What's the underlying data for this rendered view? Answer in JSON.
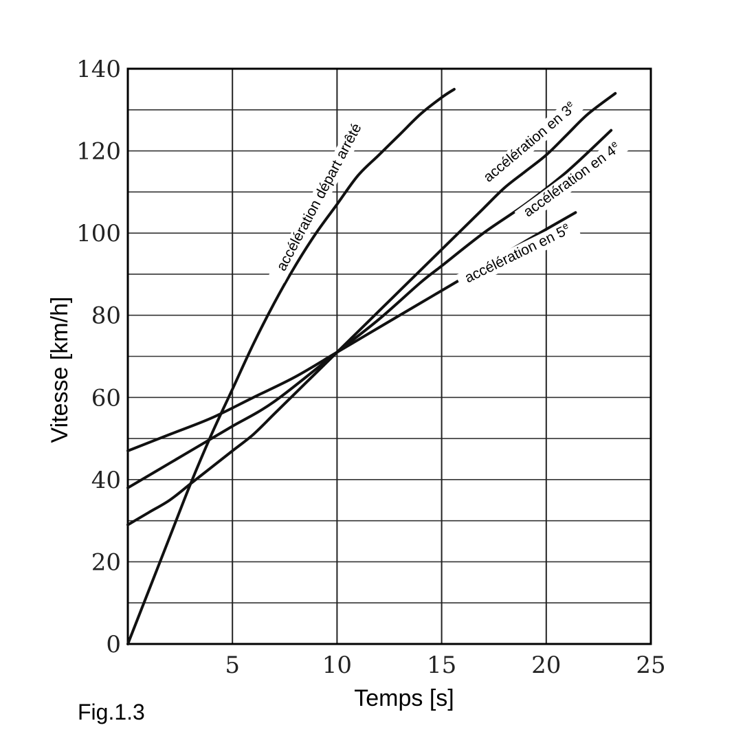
{
  "chart_data": {
    "type": "line",
    "title": "",
    "xlabel": "Temps [s]",
    "ylabel": "Vitesse [km/h]",
    "xlim": [
      0,
      25
    ],
    "ylim": [
      0,
      140
    ],
    "xticks": [
      5,
      10,
      15,
      20,
      25
    ],
    "yticks": [
      0,
      20,
      40,
      60,
      80,
      100,
      120,
      140
    ],
    "grid": {
      "vertical_every": 5,
      "horizontal_every": 10
    },
    "series": [
      {
        "label": "accélération départ arrêté",
        "points": [
          [
            0,
            0
          ],
          [
            2,
            26
          ],
          [
            3,
            39
          ],
          [
            4,
            51
          ],
          [
            5,
            62
          ],
          [
            6,
            73
          ],
          [
            7,
            83
          ],
          [
            8,
            92
          ],
          [
            9,
            100
          ],
          [
            10,
            107
          ],
          [
            11,
            114
          ],
          [
            12,
            119
          ],
          [
            13,
            124
          ],
          [
            14,
            129
          ],
          [
            15,
            133
          ],
          [
            15.6,
            135
          ]
        ]
      },
      {
        "label": "accélération en 3",
        "label_sup": "e",
        "points": [
          [
            0,
            29
          ],
          [
            1,
            32
          ],
          [
            2,
            35
          ],
          [
            3,
            39
          ],
          [
            4,
            43
          ],
          [
            5,
            47
          ],
          [
            6,
            51
          ],
          [
            7,
            56
          ],
          [
            8,
            61
          ],
          [
            9,
            66
          ],
          [
            10,
            71
          ],
          [
            11,
            76
          ],
          [
            12,
            81
          ],
          [
            13,
            86
          ],
          [
            14,
            91
          ],
          [
            15,
            96
          ],
          [
            16,
            101
          ],
          [
            17,
            106
          ],
          [
            18,
            111
          ],
          [
            19,
            115
          ],
          [
            20,
            119
          ],
          [
            21,
            124
          ],
          [
            22,
            129
          ],
          [
            23.3,
            134
          ]
        ]
      },
      {
        "label": "accélération en 4",
        "label_sup": "e",
        "points": [
          [
            0,
            38
          ],
          [
            2,
            44
          ],
          [
            4,
            50
          ],
          [
            5,
            53
          ],
          [
            7,
            59
          ],
          [
            10,
            71
          ],
          [
            12,
            79
          ],
          [
            14,
            88
          ],
          [
            15,
            92
          ],
          [
            17,
            100
          ],
          [
            19,
            107
          ],
          [
            21,
            115
          ],
          [
            23.1,
            125
          ]
        ]
      },
      {
        "label": "accélération en 5",
        "label_sup": "e",
        "points": [
          [
            0,
            47
          ],
          [
            2,
            51
          ],
          [
            4,
            55
          ],
          [
            6,
            60
          ],
          [
            8,
            65
          ],
          [
            10,
            71
          ],
          [
            12,
            77
          ],
          [
            14,
            83
          ],
          [
            15,
            86
          ],
          [
            17,
            92
          ],
          [
            19,
            98
          ],
          [
            21.4,
            105
          ]
        ]
      }
    ]
  },
  "figure_caption": "Fig.1.3"
}
